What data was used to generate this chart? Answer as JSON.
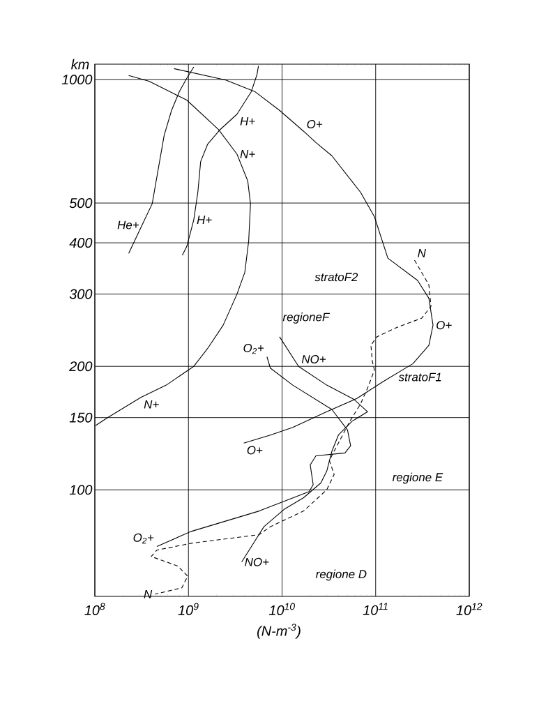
{
  "chart_data": {
    "type": "line",
    "xlabel": "(N-m$^{-3}$)",
    "ylabel": "km",
    "log": "xy",
    "grid": true,
    "marker": "none",
    "xlim": [
      100000000.0,
      1000000000000.0
    ],
    "ylim": [
      55,
      1090
    ],
    "xticks": [
      {
        "value": 100000000.0,
        "label": "10$^{8}$"
      },
      {
        "value": 1000000000.0,
        "label": "10$^{9}$"
      },
      {
        "value": 10000000000.0,
        "label": "10$^{10}$"
      },
      {
        "value": 100000000000.0,
        "label": "10$^{11}$"
      },
      {
        "value": 1000000000000.0,
        "label": "10$^{12}$"
      }
    ],
    "yticks": [
      100,
      150,
      200,
      300,
      400,
      500,
      1000
    ],
    "series": [
      {
        "name": "He+",
        "color": "#000000",
        "x": [
          230000000.0,
          320000000.0,
          410000000.0,
          460000000.0,
          550000000.0,
          660000000.0,
          800000000.0,
          950000000.0,
          1140000000.0
        ],
        "values": [
          377,
          442,
          498,
          579,
          731,
          841,
          935,
          1003,
          1073
        ]
      },
      {
        "name": "H+",
        "color": "#000000",
        "x": [
          860000000.0,
          960000000.0,
          1140000000.0,
          1260000000.0,
          1350000000.0,
          1600000000.0,
          2150000000.0,
          3300000000.0,
          4700000000.0,
          5400000000.0,
          5600000000.0
        ],
        "values": [
          373,
          392,
          455,
          531,
          631,
          695,
          753,
          823,
          935,
          1029,
          1080
        ]
      },
      {
        "name": "N+",
        "color": "#000000",
        "x": [
          230000000.0,
          380000000.0,
          960000000.0,
          2100000000.0,
          3300000000.0,
          4300000000.0,
          4600000000.0,
          4400000000.0,
          4000000000.0,
          3300000000.0,
          2350000000.0,
          1600000000.0,
          1140000000.0,
          580000000.0,
          310000000.0,
          137000000.0,
          102000000.0
        ],
        "values": [
          1023,
          990,
          891,
          755,
          658,
          566,
          498,
          404,
          339,
          300,
          252,
          221,
          200,
          180,
          168,
          150,
          143.5
        ]
      },
      {
        "name": "O+",
        "color": "#000000",
        "x": [
          700000000.0,
          2500000000.0,
          5100000000.0,
          9400000000.0,
          17000000000.0,
          23000000000.0,
          34000000000.0,
          69000000000.0,
          97000000000.0,
          135000000000.0,
          280000000000.0,
          370000000000.0,
          410000000000.0,
          370000000000.0,
          250000000000.0,
          122000000000.0,
          63000000000.0,
          30000000000.0,
          13000000000.0,
          7500000000.0,
          3900000000.0
        ],
        "values": [
          1063,
          997,
          935,
          841,
          748,
          702,
          652,
          531,
          463,
          367,
          324,
          293,
          252,
          225,
          203,
          184,
          167,
          155,
          142,
          136,
          130
        ]
      },
      {
        "name": "NO+",
        "color": "#000000",
        "x": [
          9400000000.0,
          15000000000.0,
          30000000000.0,
          59000000000.0,
          82000000000.0,
          56000000000.0,
          40000000000.0,
          34000000000.0,
          30000000000.0,
          26000000000.0,
          17000000000.0,
          10500000000.0,
          6400000000.0,
          3700000000.0
        ],
        "values": [
          236,
          200,
          180,
          166,
          155,
          147,
          136,
          124,
          111,
          104,
          95.7,
          89.6,
          81.3,
          66.7
        ]
      },
      {
        "name": "O$_{2}$+",
        "color": "#000000",
        "x": [
          6900000000.0,
          7500000000.0,
          13000000000.0,
          34000000000.0,
          50000000000.0,
          54000000000.0,
          47000000000.0,
          23000000000.0,
          20000000000.0,
          21500000000.0,
          19500000000.0,
          5700000000.0,
          1070000000.0,
          460000000.0
        ],
        "values": [
          211,
          198,
          180,
          157,
          140,
          128,
          123,
          121,
          115,
          103,
          99,
          88.8,
          79.2,
          72.8
        ]
      },
      {
        "name": "N",
        "color": "#000000",
        "line_style": "dashed",
        "x": [
          260000000000.0,
          370000000000.0,
          390000000000.0,
          310000000000.0,
          170000000000.0,
          103000000000.0,
          89000000000.0,
          92000000000.0,
          97000000000.0,
          82000000000.0,
          69000000000.0,
          53000000000.0,
          40000000000.0,
          32000000000.0,
          36000000000.0,
          30000000000.0,
          17000000000.0,
          7500000000.0,
          5700000000.0,
          1070000000.0,
          460000000.0,
          400000000.0,
          770000000.0,
          980000000.0,
          850000000.0,
          440000000.0
        ],
        "values": [
          363,
          316,
          280,
          262,
          249,
          236,
          225,
          206,
          196,
          177,
          162,
          147,
          130,
          118,
          109,
          100,
          88.8,
          81.3,
          77.8,
          74.1,
          71.3,
          68.8,
          65.2,
          61.6,
          57.7,
          55.7
        ]
      }
    ],
    "annotations": [
      "stratoF2",
      "regioneF",
      "stratoF1",
      "regione E",
      "regione D"
    ]
  }
}
